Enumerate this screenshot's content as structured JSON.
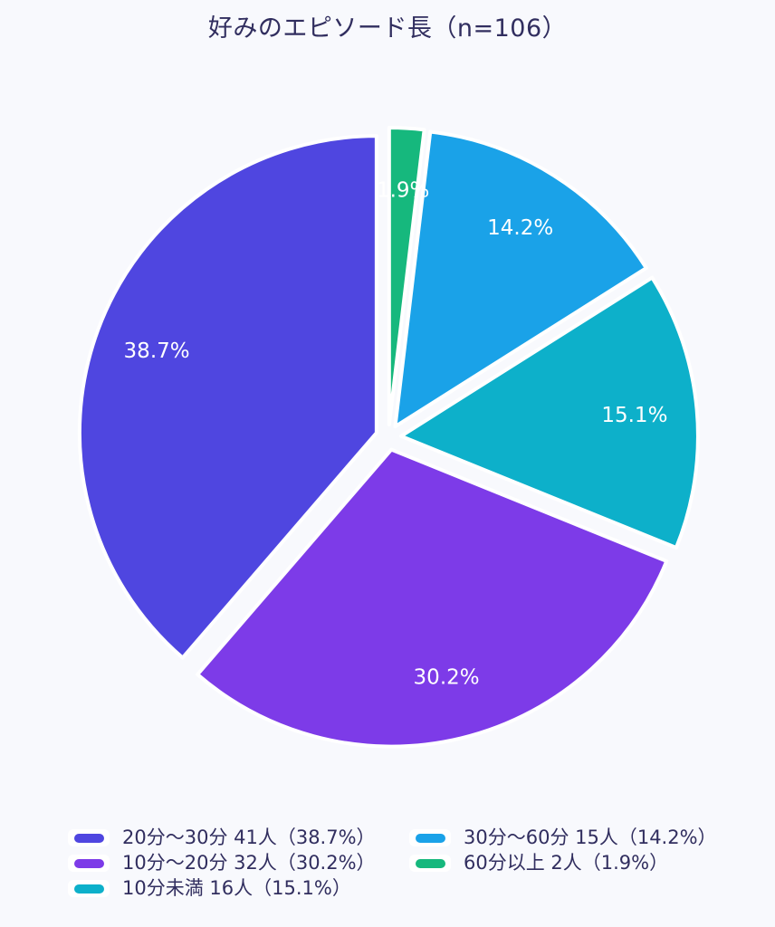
{
  "page": {
    "background_color": "#f8f9fd",
    "text_color": "#312e5f"
  },
  "chart_data": {
    "type": "pie",
    "title": "好みのエピソード長（n=106）",
    "n_total": 106,
    "slices": [
      {
        "label": "20分〜30分",
        "count": 41,
        "percent": 38.7,
        "pie_label": "38.7%",
        "legend_label": "20分〜30分  41人（38.7%）",
        "color": "#4f46e0"
      },
      {
        "label": "10分〜20分",
        "count": 32,
        "percent": 30.2,
        "pie_label": "30.2%",
        "legend_label": "10分〜20分  32人（30.2%）",
        "color": "#7d3be8"
      },
      {
        "label": "10分未満",
        "count": 16,
        "percent": 15.1,
        "pie_label": "15.1%",
        "legend_label": "10分未満  16人（15.1%）",
        "color": "#0db0ca"
      },
      {
        "label": "30分〜60分",
        "count": 15,
        "percent": 14.2,
        "pie_label": "14.2%",
        "legend_label": "30分〜60分  15人（14.2%）",
        "color": "#1aa2e8"
      },
      {
        "label": "60分以上",
        "count": 2,
        "percent": 1.9,
        "pie_label": "1.9%",
        "legend_label": "60分以上  2人（1.9%）",
        "color": "#16b87d"
      }
    ],
    "layout": {
      "start_angle_deg": 0,
      "direction": "counterclockwise",
      "center": [
        429,
        483
      ],
      "radius": 328,
      "explode": 14,
      "label_radius": 259,
      "label_color": "#ffffff",
      "slice_stroke_color": "#ffffff",
      "slice_stroke_width": 4,
      "grid": false,
      "legend_position": "bottom",
      "legend_columns": [
        [
          0,
          1,
          2
        ],
        [
          3,
          4
        ]
      ]
    }
  }
}
